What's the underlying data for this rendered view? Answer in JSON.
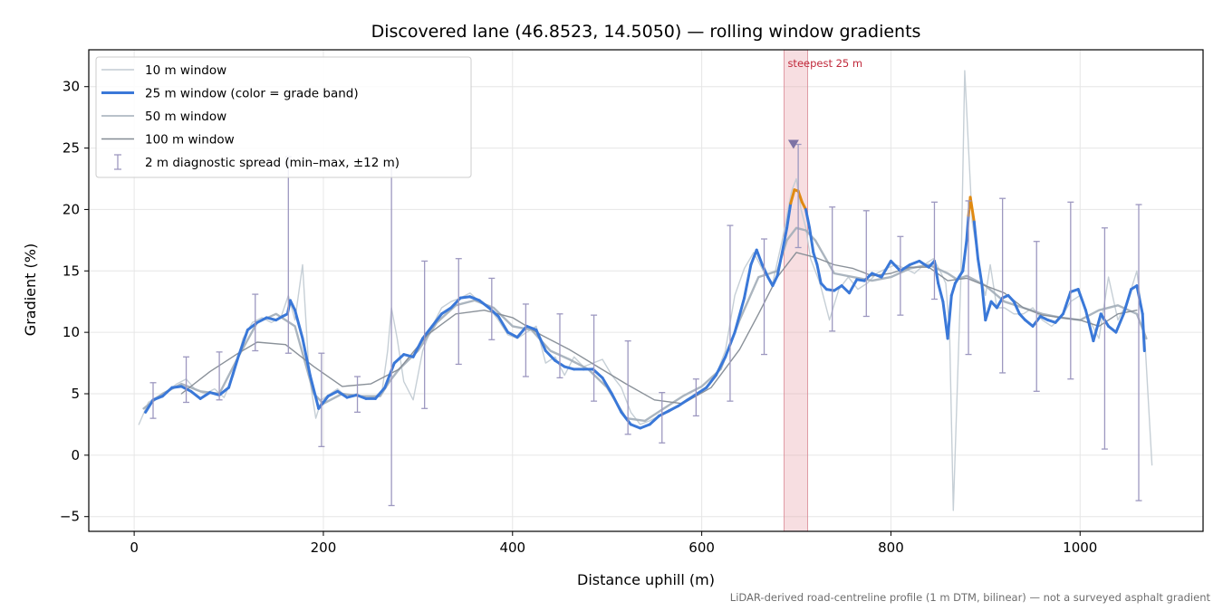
{
  "chart_data": {
    "type": "line",
    "title": "Discovered lane (46.8523, 14.5050) — rolling window gradients",
    "xlabel": "Distance uphill (m)",
    "ylabel": "Gradient (%)",
    "xlim": [
      -48,
      1130
    ],
    "ylim": [
      -6.2,
      33
    ],
    "xticks": [
      0,
      200,
      400,
      600,
      800,
      1000
    ],
    "yticks": [
      -5,
      0,
      5,
      10,
      15,
      20,
      25,
      30
    ],
    "xtick_labels": [
      "0",
      "200",
      "400",
      "600",
      "800",
      "1000"
    ],
    "ytick_labels": [
      "−5",
      "0",
      "5",
      "10",
      "15",
      "20",
      "25",
      "30"
    ],
    "grid": true,
    "legend_position": "top-left",
    "caption": "LiDAR-derived road-centreline profile (1 m DTM, bilinear) — not a surveyed asphalt gradient",
    "highlight": {
      "x_start": 687,
      "x_end": 712,
      "label": "steepest 25 m",
      "color": "#e8a0a8"
    },
    "peak_marker": {
      "x": 697,
      "y": 25.3,
      "color": "#7d73a5"
    },
    "colors": {
      "band_normal": "#3a78d8",
      "band_steep": "#e08a12",
      "w10": "#c3ccd4",
      "w50": "#a2adb8",
      "w100": "#848b94",
      "errorbar": "#9d98c0"
    },
    "legend": [
      {
        "label": "10 m window",
        "color": "#c3ccd4",
        "kind": "line"
      },
      {
        "label": "25 m window (color = grade band)",
        "color": "#3a78d8",
        "kind": "thick-line"
      },
      {
        "label": "50 m window",
        "color": "#a2adb8",
        "kind": "line"
      },
      {
        "label": "100 m window",
        "color": "#848b94",
        "kind": "line"
      },
      {
        "label": "2 m diagnostic spread (min–max, ±12 m)",
        "color": "#9d98c0",
        "kind": "errorbar"
      }
    ],
    "series": [
      {
        "name": "10 m window",
        "x": [
          5,
          15,
          25,
          35,
          45,
          55,
          65,
          75,
          85,
          95,
          105,
          115,
          125,
          135,
          145,
          155,
          163,
          170,
          178,
          185,
          192,
          198,
          205,
          215,
          225,
          235,
          245,
          255,
          262,
          268,
          272,
          278,
          285,
          295,
          305,
          315,
          325,
          335,
          345,
          355,
          365,
          375,
          385,
          395,
          405,
          415,
          425,
          435,
          445,
          455,
          465,
          475,
          485,
          495,
          505,
          515,
          525,
          535,
          545,
          555,
          565,
          575,
          585,
          595,
          605,
          615,
          625,
          635,
          645,
          655,
          665,
          675,
          685,
          690,
          695,
          700,
          705,
          710,
          715,
          725,
          735,
          745,
          755,
          765,
          775,
          785,
          795,
          805,
          815,
          825,
          835,
          845,
          852,
          858,
          862,
          866,
          870,
          874,
          878,
          882,
          886,
          890,
          895,
          900,
          905,
          912,
          920,
          930,
          940,
          950,
          960,
          970,
          980,
          990,
          1000,
          1010,
          1020,
          1030,
          1040,
          1050,
          1060,
          1068,
          1076
        ],
        "y": [
          2.5,
          4.3,
          4.8,
          5.2,
          5.8,
          6.2,
          5.3,
          5.0,
          5.4,
          4.7,
          6.5,
          9.5,
          10.8,
          11.2,
          10.8,
          11.2,
          13.0,
          11.0,
          15.5,
          6.5,
          3.0,
          4.5,
          4.9,
          5.4,
          4.7,
          5.0,
          4.6,
          4.8,
          5.2,
          8.5,
          12.0,
          9.5,
          6.0,
          4.5,
          8.5,
          10.5,
          12.0,
          12.5,
          12.8,
          13.2,
          12.5,
          12.0,
          11.0,
          9.8,
          9.5,
          10.0,
          10.5,
          7.5,
          8.0,
          6.5,
          8.0,
          7.2,
          7.5,
          7.8,
          6.5,
          5.5,
          3.5,
          2.5,
          2.8,
          3.2,
          3.5,
          4.0,
          4.5,
          5.0,
          5.5,
          6.5,
          8.5,
          13.0,
          15.2,
          16.5,
          15.0,
          14.0,
          17.5,
          19.5,
          21.5,
          22.5,
          20.0,
          18.5,
          16.0,
          14.0,
          11.0,
          13.5,
          14.5,
          13.5,
          14.0,
          14.8,
          15.2,
          15.5,
          15.2,
          14.8,
          15.5,
          16.0,
          15.0,
          14.0,
          10.0,
          -4.5,
          5.0,
          14.5,
          31.3,
          25.0,
          19.0,
          17.0,
          14.5,
          13.0,
          15.5,
          12.0,
          12.0,
          11.5,
          11.5,
          12.0,
          11.0,
          10.5,
          11.2,
          12.5,
          13.0,
          11.0,
          9.5,
          14.5,
          11.0,
          12.5,
          15.0,
          10.0,
          -0.8
        ]
      },
      {
        "name": "50 m window",
        "x": [
          10,
          30,
          50,
          70,
          90,
          110,
          130,
          150,
          170,
          190,
          200,
          220,
          240,
          260,
          270,
          280,
          300,
          320,
          340,
          360,
          380,
          400,
          420,
          440,
          460,
          480,
          500,
          520,
          540,
          560,
          580,
          600,
          620,
          640,
          660,
          680,
          690,
          700,
          710,
          720,
          740,
          760,
          780,
          800,
          820,
          840,
          860,
          870,
          880,
          890,
          900,
          920,
          940,
          960,
          980,
          1000,
          1020,
          1040,
          1060,
          1070
        ],
        "y": [
          3.8,
          5.0,
          5.8,
          5.2,
          5.0,
          8.0,
          10.8,
          11.5,
          10.5,
          5.0,
          4.2,
          5.0,
          4.8,
          4.8,
          6.0,
          7.0,
          8.5,
          10.8,
          12.2,
          12.6,
          12.0,
          10.5,
          10.2,
          8.5,
          7.8,
          7.0,
          5.5,
          3.0,
          2.8,
          3.8,
          4.8,
          5.6,
          7.0,
          11.0,
          14.5,
          15.0,
          17.5,
          18.5,
          18.3,
          17.5,
          14.8,
          14.5,
          14.2,
          14.5,
          15.2,
          15.5,
          14.8,
          14.3,
          14.6,
          14.2,
          13.8,
          12.5,
          12.0,
          11.5,
          11.2,
          11.0,
          11.8,
          12.2,
          11.5,
          9.5
        ]
      },
      {
        "name": "100 m window",
        "x": [
          50,
          80,
          110,
          130,
          160,
          190,
          220,
          250,
          280,
          310,
          340,
          370,
          400,
          430,
          460,
          490,
          520,
          550,
          580,
          610,
          640,
          660,
          680,
          700,
          720,
          740,
          760,
          780,
          800,
          820,
          840,
          860,
          880,
          900,
          920,
          940,
          960,
          980,
          1000,
          1020,
          1040,
          1060
        ],
        "y": [
          5.0,
          6.8,
          8.3,
          9.2,
          9.0,
          7.2,
          5.6,
          5.8,
          7.0,
          9.8,
          11.5,
          11.8,
          11.2,
          9.8,
          8.6,
          7.2,
          5.8,
          4.5,
          4.2,
          5.5,
          8.6,
          11.5,
          14.5,
          16.5,
          16.1,
          15.5,
          15.2,
          14.6,
          14.8,
          15.3,
          15.3,
          14.2,
          14.4,
          13.8,
          13.2,
          12.0,
          11.4,
          11.2,
          11.0,
          10.5,
          11.5,
          11.8
        ]
      },
      {
        "name": "25 m window",
        "x": [
          12,
          20,
          30,
          40,
          50,
          60,
          70,
          80,
          90,
          100,
          110,
          120,
          130,
          140,
          150,
          157,
          162,
          165,
          170,
          178,
          186,
          195,
          205,
          215,
          225,
          235,
          245,
          255,
          265,
          275,
          285,
          295,
          305,
          315,
          325,
          335,
          345,
          355,
          365,
          375,
          385,
          395,
          405,
          415,
          425,
          435,
          445,
          455,
          465,
          475,
          485,
          495,
          505,
          515,
          525,
          535,
          545,
          555,
          565,
          575,
          585,
          595,
          605,
          615,
          625,
          635,
          645,
          652,
          658,
          664,
          670,
          675,
          680,
          685,
          690,
          694,
          698,
          702,
          706,
          710,
          714,
          718,
          722,
          726,
          732,
          740,
          748,
          756,
          764,
          772,
          780,
          790,
          800,
          810,
          820,
          830,
          840,
          846,
          850,
          855,
          860,
          864,
          868,
          872,
          876,
          880,
          882,
          884,
          888,
          892,
          896,
          900,
          906,
          912,
          918,
          924,
          930,
          936,
          942,
          950,
          958,
          966,
          974,
          982,
          990,
          998,
          1006,
          1014,
          1022,
          1030,
          1038,
          1046,
          1054,
          1060,
          1066,
          1068
        ],
        "y": [
          3.5,
          4.5,
          4.8,
          5.5,
          5.6,
          5.2,
          4.6,
          5.1,
          4.9,
          5.5,
          8.0,
          10.2,
          10.8,
          11.2,
          11.0,
          11.3,
          11.5,
          12.6,
          11.8,
          9.5,
          6.5,
          3.8,
          4.8,
          5.2,
          4.7,
          4.9,
          4.6,
          4.6,
          5.5,
          7.5,
          8.2,
          8.0,
          9.5,
          10.5,
          11.5,
          12.0,
          12.8,
          12.9,
          12.6,
          12.0,
          11.3,
          10.0,
          9.6,
          10.5,
          10.2,
          8.5,
          7.7,
          7.2,
          7.0,
          7.0,
          7.0,
          6.3,
          5.0,
          3.5,
          2.5,
          2.2,
          2.5,
          3.2,
          3.6,
          4.0,
          4.5,
          5.0,
          5.5,
          6.5,
          8.0,
          10.0,
          12.8,
          15.5,
          16.7,
          15.5,
          14.5,
          13.8,
          14.6,
          16.5,
          18.5,
          20.5,
          21.6,
          21.5,
          20.6,
          20.0,
          18.5,
          16.5,
          15.5,
          14.0,
          13.5,
          13.4,
          13.8,
          13.2,
          14.3,
          14.2,
          14.8,
          14.5,
          15.8,
          15.0,
          15.5,
          15.8,
          15.3,
          15.8,
          14.0,
          12.5,
          9.5,
          13.0,
          14.0,
          14.5,
          15.0,
          17.5,
          19.5,
          21.0,
          19.0,
          16.0,
          14.0,
          11.0,
          12.5,
          12.0,
          12.8,
          13.0,
          12.5,
          11.5,
          11.0,
          10.5,
          11.3,
          11.0,
          10.8,
          11.5,
          13.3,
          13.5,
          11.8,
          9.3,
          11.5,
          10.5,
          10.0,
          11.5,
          13.5,
          13.8,
          11.5,
          8.5
        ]
      },
      {
        "name": "2 m diagnostic spread (min–max, ±12 m)",
        "x": [
          20,
          55,
          90,
          128,
          163,
          198,
          236,
          272,
          307,
          343,
          378,
          414,
          450,
          486,
          522,
          558,
          594,
          630,
          666,
          702,
          738,
          774,
          810,
          846,
          882,
          918,
          954,
          990,
          1026,
          1062
        ],
        "low": [
          3.0,
          4.3,
          4.5,
          8.5,
          8.3,
          0.7,
          3.5,
          -4.1,
          3.8,
          7.4,
          9.4,
          6.4,
          6.3,
          4.4,
          1.7,
          1.0,
          3.2,
          4.4,
          8.2,
          16.9,
          10.1,
          11.3,
          11.4,
          12.7,
          8.2,
          6.7,
          5.2,
          6.2,
          0.5,
          -3.7
        ],
        "high": [
          5.9,
          8.0,
          8.4,
          13.1,
          24.3,
          8.3,
          6.4,
          23.6,
          15.8,
          16.0,
          14.4,
          12.3,
          11.5,
          11.4,
          9.3,
          5.1,
          6.2,
          18.7,
          17.6,
          25.3,
          20.2,
          19.9,
          17.8,
          20.6,
          20.7,
          20.9,
          17.4,
          20.6,
          18.5,
          20.4
        ]
      }
    ]
  }
}
